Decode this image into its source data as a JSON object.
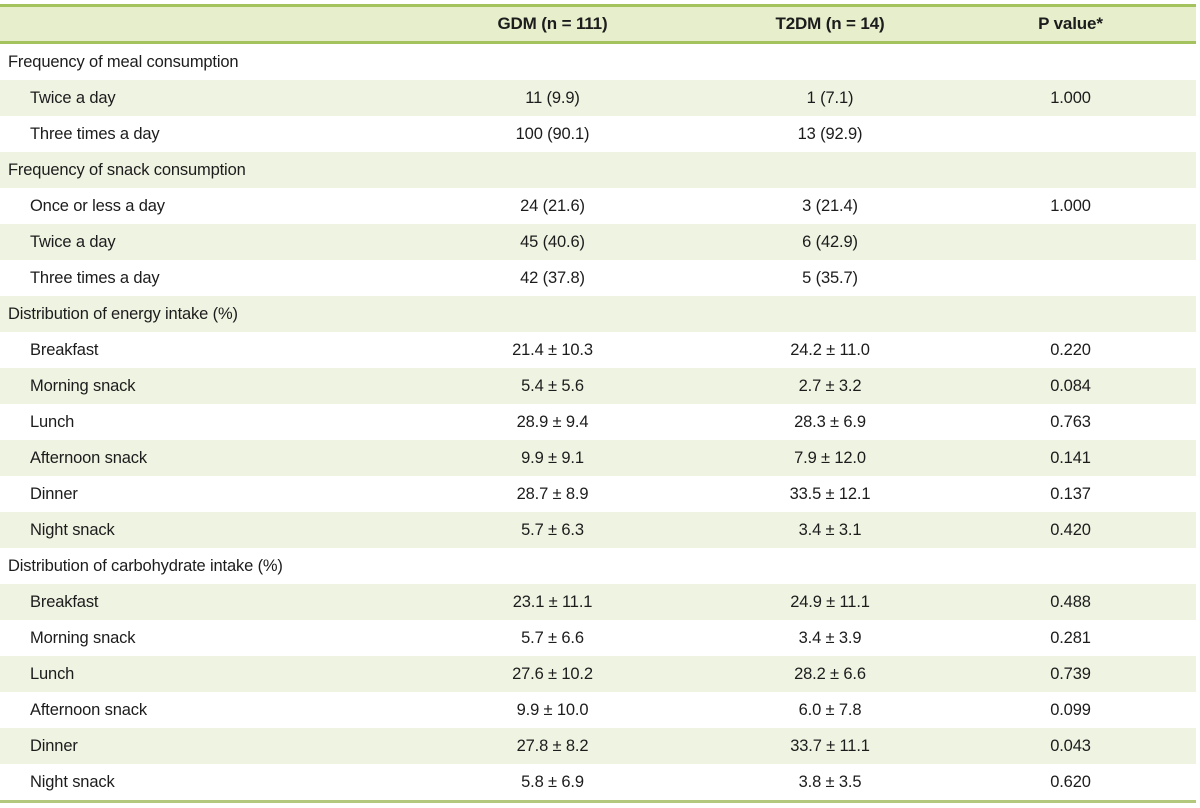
{
  "colors": {
    "header_bg": "#e6eecb",
    "row_alt_bg": "#eff3e2",
    "border_strong": "#a4c25e",
    "border_bottom": "#b2c87c",
    "text": "#1c1c1c"
  },
  "table": {
    "columns": [
      "",
      "GDM (n = 111)",
      "T2DM (n = 14)",
      "P value*"
    ],
    "rows": [
      {
        "type": "section",
        "label": "Frequency of meal consumption",
        "gdm": "",
        "t2dm": "",
        "p": ""
      },
      {
        "type": "item",
        "label": "Twice a day",
        "gdm": "11 (9.9)",
        "t2dm": "1 (7.1)",
        "p": "1.000"
      },
      {
        "type": "item",
        "label": "Three times a day",
        "gdm": "100 (90.1)",
        "t2dm": "13 (92.9)",
        "p": ""
      },
      {
        "type": "section",
        "label": "Frequency of snack consumption",
        "gdm": "",
        "t2dm": "",
        "p": ""
      },
      {
        "type": "item",
        "label": "Once or less a day",
        "gdm": "24 (21.6)",
        "t2dm": "3 (21.4)",
        "p": "1.000"
      },
      {
        "type": "item",
        "label": "Twice a day",
        "gdm": "45 (40.6)",
        "t2dm": "6 (42.9)",
        "p": ""
      },
      {
        "type": "item",
        "label": "Three times a day",
        "gdm": "42 (37.8)",
        "t2dm": "5 (35.7)",
        "p": ""
      },
      {
        "type": "section",
        "label": "Distribution of energy intake (%)",
        "gdm": "",
        "t2dm": "",
        "p": ""
      },
      {
        "type": "item",
        "label": "Breakfast",
        "gdm": "21.4 ± 10.3",
        "t2dm": "24.2 ± 11.0",
        "p": "0.220"
      },
      {
        "type": "item",
        "label": "Morning snack",
        "gdm": "5.4 ± 5.6",
        "t2dm": "2.7 ± 3.2",
        "p": "0.084"
      },
      {
        "type": "item",
        "label": "Lunch",
        "gdm": "28.9 ± 9.4",
        "t2dm": "28.3 ± 6.9",
        "p": "0.763"
      },
      {
        "type": "item",
        "label": "Afternoon snack",
        "gdm": "9.9 ± 9.1",
        "t2dm": "7.9 ± 12.0",
        "p": "0.141"
      },
      {
        "type": "item",
        "label": "Dinner",
        "gdm": "28.7 ± 8.9",
        "t2dm": "33.5 ± 12.1",
        "p": "0.137"
      },
      {
        "type": "item",
        "label": "Night snack",
        "gdm": "5.7 ± 6.3",
        "t2dm": "3.4 ± 3.1",
        "p": "0.420"
      },
      {
        "type": "section",
        "label": "Distribution of carbohydrate intake (%)",
        "gdm": "",
        "t2dm": "",
        "p": ""
      },
      {
        "type": "item",
        "label": "Breakfast",
        "gdm": "23.1 ± 11.1",
        "t2dm": "24.9 ± 11.1",
        "p": "0.488"
      },
      {
        "type": "item",
        "label": "Morning snack",
        "gdm": "5.7 ± 6.6",
        "t2dm": "3.4 ± 3.9",
        "p": "0.281"
      },
      {
        "type": "item",
        "label": "Lunch",
        "gdm": "27.6 ± 10.2",
        "t2dm": "28.2 ± 6.6",
        "p": "0.739"
      },
      {
        "type": "item",
        "label": "Afternoon snack",
        "gdm": "9.9 ± 10.0",
        "t2dm": "6.0 ± 7.8",
        "p": "0.099"
      },
      {
        "type": "item",
        "label": "Dinner",
        "gdm": "27.8 ± 8.2",
        "t2dm": "33.7 ± 11.1",
        "p": "0.043"
      },
      {
        "type": "item",
        "label": "Night snack",
        "gdm": "5.8 ± 6.9",
        "t2dm": "3.8 ± 3.5",
        "p": "0.620"
      }
    ]
  }
}
